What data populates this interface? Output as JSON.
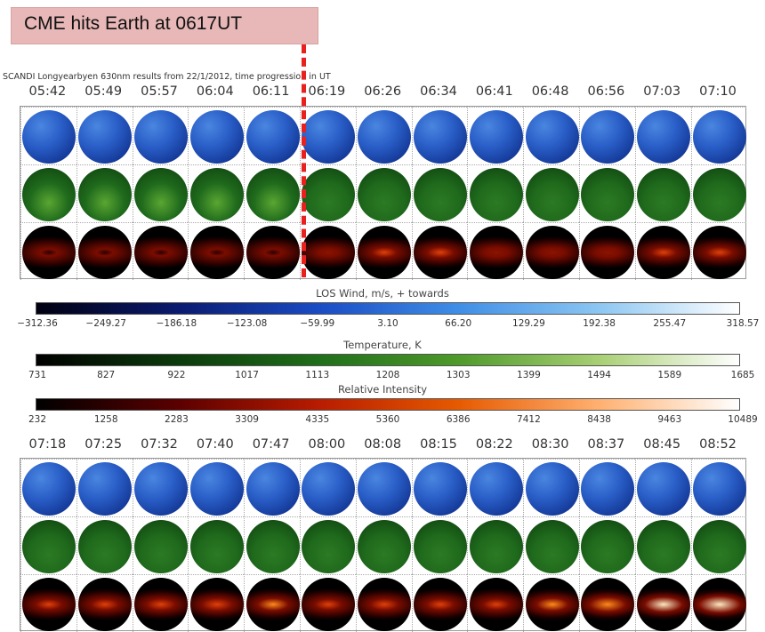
{
  "callout": {
    "text": "CME hits Earth at 0617UT",
    "color": "#e8b7b7"
  },
  "cme_marker_color": "#e8211e",
  "title": "SCANDI Longyearbyen 630nm results from 22/1/2012, time progression in UT",
  "top_panel": {
    "times": [
      "05:42",
      "05:49",
      "05:57",
      "06:04",
      "06:11",
      "06:19",
      "06:26",
      "06:34",
      "06:41",
      "06:48",
      "06:56",
      "07:03",
      "07:10"
    ],
    "intensity_level": [
      0.02,
      0.02,
      0.02,
      0.02,
      0.03,
      0.18,
      0.32,
      0.36,
      0.28,
      0.26,
      0.28,
      0.33,
      0.38
    ],
    "temperature_level": [
      0.6,
      0.6,
      0.58,
      0.6,
      0.62,
      0.3,
      0.28,
      0.28,
      0.28,
      0.28,
      0.3,
      0.3,
      0.3
    ]
  },
  "bottom_panel": {
    "times": [
      "07:18",
      "07:25",
      "07:32",
      "07:40",
      "07:47",
      "08:00",
      "08:08",
      "08:15",
      "08:22",
      "08:30",
      "08:37",
      "08:45",
      "08:52"
    ],
    "intensity_level": [
      0.35,
      0.4,
      0.45,
      0.5,
      0.52,
      0.38,
      0.42,
      0.4,
      0.38,
      0.55,
      0.7,
      0.78,
      0.9
    ],
    "temperature_level": [
      0.32,
      0.32,
      0.32,
      0.32,
      0.32,
      0.32,
      0.34,
      0.36,
      0.4,
      0.42,
      0.48,
      0.5,
      0.5
    ]
  },
  "colorbars": [
    {
      "label": "LOS Wind, m/s, + towards",
      "gradient": [
        "#000010",
        "#0a1a6e",
        "#1a4bc4",
        "#3f8ee6",
        "#8cc6f2",
        "#ffffff"
      ],
      "ticks": [
        "−312.36",
        "−249.27",
        "−186.18",
        "−123.08",
        "−59.99",
        "3.10",
        "66.20",
        "129.29",
        "192.38",
        "255.47",
        "318.57"
      ]
    },
    {
      "label": "Temperature, K",
      "gradient": [
        "#000000",
        "#0c3a0c",
        "#1f6e1a",
        "#4e9a2a",
        "#a8cf74",
        "#ffffff"
      ],
      "ticks": [
        "731",
        "827",
        "922",
        "1017",
        "1113",
        "1208",
        "1303",
        "1399",
        "1494",
        "1589",
        "1685"
      ]
    },
    {
      "label": "Relative Intensity",
      "gradient": [
        "#000000",
        "#5a0000",
        "#b81b00",
        "#e65a00",
        "#ffb070",
        "#ffffff"
      ],
      "ticks": [
        "232",
        "1258",
        "2283",
        "3309",
        "4335",
        "5360",
        "6386",
        "7412",
        "8438",
        "9463",
        "10489"
      ]
    }
  ]
}
